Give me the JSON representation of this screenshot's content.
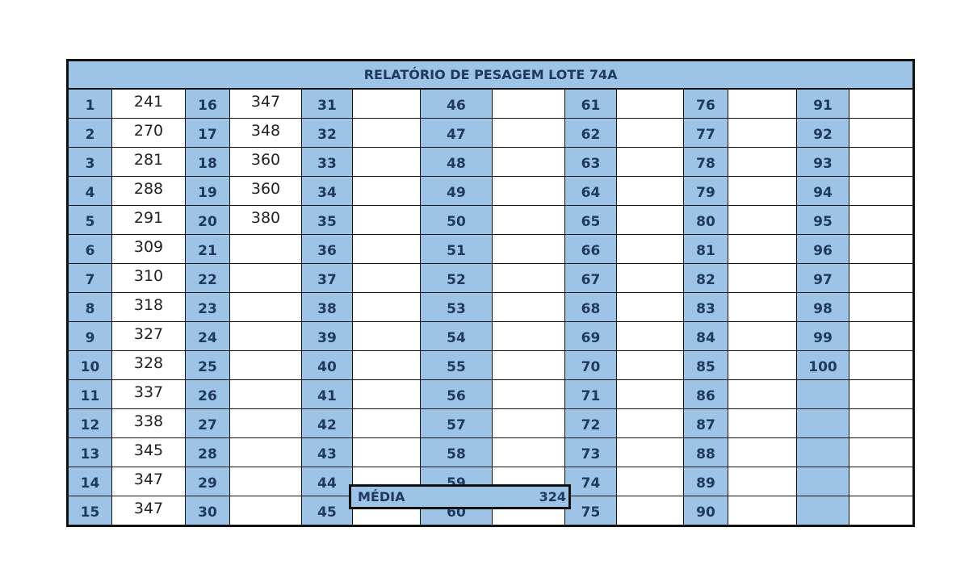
{
  "title": "RELATÓRIO DE PESAGEM LOTE  74A",
  "colors": {
    "header_fill": "#9dc3e6",
    "header_text": "#1f3864"
  },
  "groups": [
    {
      "labels": [
        "1",
        "2",
        "3",
        "4",
        "5",
        "6",
        "7",
        "8",
        "9",
        "10",
        "11",
        "12",
        "13",
        "14",
        "15"
      ],
      "values": [
        "241",
        "270",
        "281",
        "288",
        "291",
        "309",
        "310",
        "318",
        "327",
        "328",
        "337",
        "338",
        "345",
        "347",
        "347"
      ]
    },
    {
      "labels": [
        "16",
        "17",
        "18",
        "19",
        "20",
        "21",
        "22",
        "23",
        "24",
        "25",
        "26",
        "27",
        "28",
        "29",
        "30"
      ],
      "values": [
        "347",
        "348",
        "360",
        "360",
        "380",
        "",
        "",
        "",
        "",
        "",
        "",
        "",
        "",
        "",
        ""
      ]
    },
    {
      "labels": [
        "31",
        "32",
        "33",
        "34",
        "35",
        "36",
        "37",
        "38",
        "39",
        "40",
        "41",
        "42",
        "43",
        "44",
        "45"
      ],
      "values": [
        "",
        "",
        "",
        "",
        "",
        "",
        "",
        "",
        "",
        "",
        "",
        "",
        "",
        "",
        ""
      ]
    },
    {
      "labels": [
        "46",
        "47",
        "48",
        "49",
        "50",
        "51",
        "52",
        "53",
        "54",
        "55",
        "56",
        "57",
        "58",
        "59",
        "60"
      ],
      "values": [
        "",
        "",
        "",
        "",
        "",
        "",
        "",
        "",
        "",
        "",
        "",
        "",
        "",
        "",
        ""
      ]
    },
    {
      "labels": [
        "61",
        "62",
        "63",
        "64",
        "65",
        "66",
        "67",
        "68",
        "69",
        "70",
        "71",
        "72",
        "73",
        "74",
        "75"
      ],
      "values": [
        "",
        "",
        "",
        "",
        "",
        "",
        "",
        "",
        "",
        "",
        "",
        "",
        "",
        "",
        ""
      ]
    },
    {
      "labels": [
        "76",
        "77",
        "78",
        "79",
        "80",
        "81",
        "82",
        "83",
        "84",
        "85",
        "86",
        "87",
        "88",
        "89",
        "90"
      ],
      "values": [
        "",
        "",
        "",
        "",
        "",
        "",
        "",
        "",
        "",
        "",
        "",
        "",
        "",
        "",
        ""
      ]
    },
    {
      "labels": [
        "91",
        "92",
        "93",
        "94",
        "95",
        "96",
        "97",
        "98",
        "99",
        "100",
        "",
        "",
        "",
        "",
        ""
      ],
      "values": [
        "",
        "",
        "",
        "",
        "",
        "",
        "",
        "",
        "",
        "",
        "",
        "",
        "",
        "",
        ""
      ]
    }
  ],
  "summary": {
    "label": "MÉDIA",
    "value": "324"
  }
}
